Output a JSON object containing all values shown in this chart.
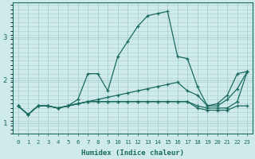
{
  "xlabel": "Humidex (Indice chaleur)",
  "xlim": [
    -0.5,
    23.5
  ],
  "ylim": [
    0.75,
    3.8
  ],
  "bg_color": "#ceeaea",
  "grid_color": "#aacfcf",
  "line_color": "#1a6b5e",
  "series": [
    [
      1.4,
      1.2,
      1.4,
      1.4,
      1.35,
      1.4,
      1.55,
      2.15,
      2.15,
      1.75,
      2.55,
      2.9,
      3.25,
      3.5,
      3.55,
      3.6,
      2.55,
      2.5,
      1.85,
      1.4,
      1.45,
      1.65,
      2.15,
      2.2
    ],
    [
      1.4,
      1.2,
      1.4,
      1.4,
      1.35,
      1.4,
      1.45,
      1.5,
      1.55,
      1.6,
      1.65,
      1.7,
      1.75,
      1.8,
      1.85,
      1.9,
      1.95,
      1.75,
      1.65,
      1.4,
      1.4,
      1.55,
      1.8,
      2.2
    ],
    [
      1.4,
      1.2,
      1.4,
      1.4,
      1.35,
      1.4,
      1.45,
      1.5,
      1.5,
      1.5,
      1.5,
      1.5,
      1.5,
      1.5,
      1.5,
      1.5,
      1.5,
      1.5,
      1.4,
      1.35,
      1.35,
      1.35,
      1.5,
      2.2
    ],
    [
      1.4,
      1.2,
      1.4,
      1.4,
      1.35,
      1.4,
      1.45,
      1.5,
      1.5,
      1.5,
      1.5,
      1.5,
      1.5,
      1.5,
      1.5,
      1.5,
      1.5,
      1.5,
      1.35,
      1.3,
      1.3,
      1.3,
      1.4,
      1.4
    ]
  ],
  "yticks": [
    1,
    2,
    3
  ],
  "xticks": [
    0,
    1,
    2,
    3,
    4,
    5,
    6,
    7,
    8,
    9,
    10,
    11,
    12,
    13,
    14,
    15,
    16,
    17,
    18,
    19,
    20,
    21,
    22,
    23
  ]
}
